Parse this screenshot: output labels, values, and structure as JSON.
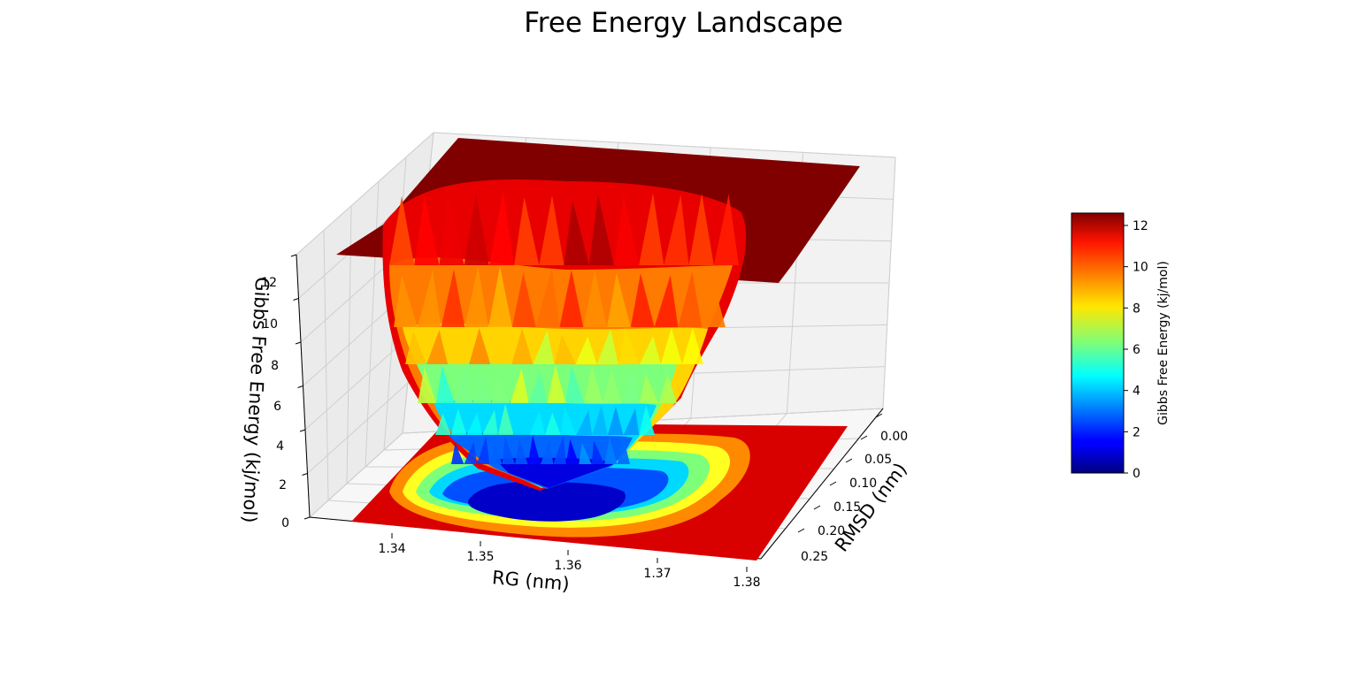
{
  "chart_data": {
    "type": "surface3d",
    "title": "Free Energy Landscape",
    "xlabel": "RG (nm)",
    "ylabel": "RMSD (nm)",
    "zlabel": "Gibbs Free Energy (kj/mol)",
    "x_ticks": [
      "1.34",
      "1.35",
      "1.36",
      "1.37",
      "1.38"
    ],
    "y_ticks": [
      "0.00",
      "0.05",
      "0.10",
      "0.15",
      "0.20",
      "0.25"
    ],
    "z_ticks": [
      "0",
      "2",
      "4",
      "6",
      "8",
      "10",
      "12"
    ],
    "xlim": [
      1.333,
      1.382
    ],
    "ylim": [
      0.0,
      0.27
    ],
    "zlim": [
      0,
      12.6
    ],
    "colormap": "jet",
    "minimum": {
      "x": 1.358,
      "y": 0.2,
      "z": 0.0
    },
    "plateau_value": 12.6,
    "colorbar": {
      "label": "Gibbs Free Energy (kj/mol)",
      "ticks": [
        "0",
        "2",
        "4",
        "6",
        "8",
        "10",
        "12"
      ],
      "range": [
        0,
        12.6
      ],
      "placement": "right"
    },
    "grid": true
  }
}
